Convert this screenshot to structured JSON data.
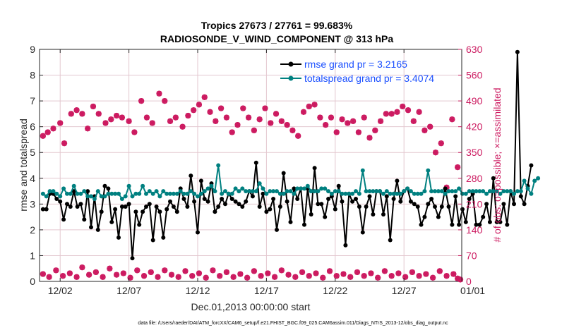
{
  "chart_data": {
    "type": "line",
    "title_line1": "Tropics 27673 / 27761 = 99.683%",
    "title_line2": "RADIOSONDE_V_WIND_COMPONENT @ 313 hPa",
    "xlabel": "Dec.01,2013 00:00:00 start",
    "ylabel_left": "rmse and totalspread",
    "ylabel_right": "# of obs: o=possible; ×=assimilated",
    "footer": "data file: /Users/raeder/DAI/ATM_forcXX/CAM6_setup/f.e21.FHIST_BGC.f09_025.CAM6assim.011/Diags_NTrS_2013-12/obs_diag_output.nc",
    "xlim": [
      0.5,
      31.2
    ],
    "ylim_left": [
      0,
      9
    ],
    "ylim_right": [
      0,
      630
    ],
    "xticks": [
      2,
      7,
      12,
      17,
      22,
      27,
      32
    ],
    "xtick_labels": [
      "12/02",
      "12/07",
      "12/12",
      "12/17",
      "12/22",
      "12/27",
      "01/01"
    ],
    "yticks_left": [
      0,
      1,
      2,
      3,
      4,
      5,
      6,
      7,
      8,
      9
    ],
    "yticks_left_labels": [
      "0",
      "1",
      "2",
      "3",
      "4",
      "5",
      "6",
      "7",
      "8",
      "9"
    ],
    "yticks_right": [
      0,
      70,
      140,
      210,
      280,
      350,
      420,
      490,
      560,
      630
    ],
    "yticks_right_labels": [
      "0",
      "70",
      "140",
      "210",
      "280",
      "350",
      "420",
      "490",
      "560",
      "630"
    ],
    "legend": [
      {
        "label": "rmse grand pr = 3.2165",
        "color": "#000000"
      },
      {
        "label": "totalspread grand pr = 3.4074",
        "color": "#008080"
      }
    ],
    "colors": {
      "rmse": "#000000",
      "spread": "#008080",
      "obs": "#cc1a60",
      "right_axis": "#cc1a60"
    },
    "x_start": 0.75,
    "x_step": 0.25,
    "series": [
      {
        "name": "rmse",
        "values": [
          2.8,
          2.8,
          3.4,
          3.4,
          3.2,
          3.1,
          2.4,
          3.0,
          2.9,
          3.5,
          2.9,
          3.0,
          2.4,
          3.5,
          2.1,
          3.3,
          2.0,
          2.7,
          3.7,
          3.6,
          2.3,
          2.8,
          1.7,
          2.9,
          2.9,
          3.0,
          0.9,
          2.7,
          2.2,
          2.7,
          2.9,
          3.0,
          1.6,
          2.9,
          2.7,
          1.7,
          2.8,
          3.1,
          2.9,
          2.7,
          3.6,
          3.2,
          2.9,
          4.1,
          3.1,
          1.9,
          3.9,
          3.2,
          3.1,
          3.8,
          2.7,
          2.9,
          3.2,
          3.0,
          3.4,
          3.2,
          3.1,
          3.0,
          2.9,
          3.1,
          3.5,
          3.3,
          4.6,
          2.9,
          3.4,
          2.7,
          2.8,
          3.2,
          2.0,
          2.9,
          4.2,
          3.1,
          2.3,
          3.6,
          3.2,
          3.6,
          2.2,
          3.6,
          2.6,
          4.4,
          3.0,
          3.0,
          2.5,
          3.2,
          3.3,
          2.8,
          3.7,
          3.1,
          1.4,
          3.4,
          3.1,
          3.2,
          2.9,
          1.9,
          2.9,
          3.3,
          2.6,
          3.5,
          3.5,
          2.6,
          3.3,
          1.6,
          3.2,
          3.9,
          3.1,
          3.5,
          3.6,
          3.1,
          3.0,
          2.9,
          2.2,
          2.5,
          3.0,
          3.2,
          2.9,
          2.5,
          2.9,
          3.6,
          2.9,
          2.2,
          3.3,
          2.2,
          2.8,
          2.3,
          3.2,
          3.4,
          2.2,
          2.2,
          2.5,
          3.0,
          2.3,
          4.0,
          2.3,
          2.3,
          3.0,
          2.2,
          3.5,
          3.0,
          8.9,
          3.3,
          3.0,
          3.7,
          4.5
        ]
      },
      {
        "name": "totalspread",
        "values": [
          3.4,
          3.3,
          3.5,
          3.5,
          3.4,
          3.3,
          3.6,
          3.4,
          3.4,
          3.7,
          3.4,
          3.4,
          3.5,
          3.3,
          3.3,
          3.2,
          3.5,
          3.3,
          3.3,
          3.4,
          3.4,
          3.4,
          3.4,
          3.2,
          3.3,
          3.7,
          3.3,
          3.4,
          3.4,
          3.7,
          3.4,
          3.5,
          3.4,
          3.5,
          3.3,
          3.5,
          3.4,
          3.4,
          3.4,
          3.4,
          3.5,
          3.4,
          3.4,
          3.5,
          3.4,
          3.3,
          3.4,
          3.5,
          3.6,
          3.7,
          3.5,
          4.5,
          3.4,
          3.5,
          3.4,
          3.4,
          3.6,
          3.5,
          3.6,
          3.5,
          3.5,
          3.5,
          3.5,
          3.8,
          3.6,
          3.4,
          3.5,
          3.5,
          3.5,
          3.4,
          3.4,
          3.5,
          3.5,
          3.4,
          3.6,
          3.6,
          3.6,
          3.7,
          3.5,
          3.5,
          3.5,
          3.6,
          3.6,
          3.5,
          3.4,
          3.5,
          3.5,
          3.4,
          3.4,
          3.4,
          3.4,
          3.5,
          3.4,
          4.3,
          3.5,
          3.5,
          3.5,
          3.5,
          3.5,
          3.4,
          3.5,
          3.4,
          3.4,
          3.4,
          3.4,
          3.5,
          3.6,
          3.5,
          3.4,
          3.4,
          3.4,
          3.5,
          4.3,
          3.5,
          3.5,
          3.5,
          3.5,
          3.4,
          3.5,
          3.5,
          3.5,
          3.6,
          3.4,
          3.4,
          3.5,
          3.5,
          3.5,
          3.5,
          3.5,
          3.4,
          3.5,
          3.5,
          3.5,
          3.4,
          3.5,
          3.5,
          3.5,
          3.4,
          3.5,
          3.5,
          3.9,
          3.6,
          3.4,
          3.9,
          4.0
        ]
      }
    ],
    "obs_possible": [
      {
        "x": 0.75,
        "y": 395
      },
      {
        "x": 1.1,
        "y": 405
      },
      {
        "x": 1.5,
        "y": 415
      },
      {
        "x": 2.0,
        "y": 430
      },
      {
        "x": 2.3,
        "y": 375
      },
      {
        "x": 2.8,
        "y": 455
      },
      {
        "x": 3.2,
        "y": 465
      },
      {
        "x": 3.6,
        "y": 455
      },
      {
        "x": 4.0,
        "y": 415
      },
      {
        "x": 4.4,
        "y": 475
      },
      {
        "x": 4.8,
        "y": 455
      },
      {
        "x": 5.3,
        "y": 430
      },
      {
        "x": 5.7,
        "y": 440
      },
      {
        "x": 6.1,
        "y": 450
      },
      {
        "x": 6.5,
        "y": 445
      },
      {
        "x": 7.0,
        "y": 435
      },
      {
        "x": 7.4,
        "y": 405
      },
      {
        "x": 7.9,
        "y": 490
      },
      {
        "x": 8.3,
        "y": 445
      },
      {
        "x": 8.7,
        "y": 430
      },
      {
        "x": 9.2,
        "y": 510
      },
      {
        "x": 9.6,
        "y": 490
      },
      {
        "x": 10.0,
        "y": 435
      },
      {
        "x": 10.4,
        "y": 445
      },
      {
        "x": 10.9,
        "y": 420
      },
      {
        "x": 11.3,
        "y": 450
      },
      {
        "x": 11.7,
        "y": 465
      },
      {
        "x": 12.1,
        "y": 480
      },
      {
        "x": 12.5,
        "y": 500
      },
      {
        "x": 12.9,
        "y": 460
      },
      {
        "x": 13.3,
        "y": 435
      },
      {
        "x": 13.7,
        "y": 470
      },
      {
        "x": 14.1,
        "y": 445
      },
      {
        "x": 14.5,
        "y": 405
      },
      {
        "x": 14.9,
        "y": 425
      },
      {
        "x": 15.3,
        "y": 470
      },
      {
        "x": 15.7,
        "y": 445
      },
      {
        "x": 16.1,
        "y": 410
      },
      {
        "x": 16.5,
        "y": 440
      },
      {
        "x": 16.9,
        "y": 470
      },
      {
        "x": 17.3,
        "y": 430
      },
      {
        "x": 17.7,
        "y": 455
      },
      {
        "x": 18.1,
        "y": 435
      },
      {
        "x": 18.5,
        "y": 425
      },
      {
        "x": 18.9,
        "y": 410
      },
      {
        "x": 19.3,
        "y": 395
      },
      {
        "x": 19.7,
        "y": 460
      },
      {
        "x": 20.1,
        "y": 475
      },
      {
        "x": 20.5,
        "y": 480
      },
      {
        "x": 20.9,
        "y": 445
      },
      {
        "x": 21.3,
        "y": 425
      },
      {
        "x": 21.7,
        "y": 445
      },
      {
        "x": 22.1,
        "y": 405
      },
      {
        "x": 22.5,
        "y": 440
      },
      {
        "x": 22.9,
        "y": 430
      },
      {
        "x": 23.3,
        "y": 435
      },
      {
        "x": 23.7,
        "y": 405
      },
      {
        "x": 24.1,
        "y": 445
      },
      {
        "x": 24.5,
        "y": 390
      },
      {
        "x": 24.9,
        "y": 410
      },
      {
        "x": 25.3,
        "y": 435
      },
      {
        "x": 25.7,
        "y": 455
      },
      {
        "x": 26.1,
        "y": 455
      },
      {
        "x": 26.5,
        "y": 460
      },
      {
        "x": 26.9,
        "y": 475
      },
      {
        "x": 27.3,
        "y": 465
      },
      {
        "x": 27.7,
        "y": 435
      },
      {
        "x": 28.1,
        "y": 460
      },
      {
        "x": 28.5,
        "y": 410
      },
      {
        "x": 28.9,
        "y": 420
      },
      {
        "x": 29.3,
        "y": 350
      },
      {
        "x": 29.7,
        "y": 375
      },
      {
        "x": 30.1,
        "y": 255
      },
      {
        "x": 30.5,
        "y": 440
      },
      {
        "x": 30.9,
        "y": 310
      }
    ],
    "obs_assimilated": [
      {
        "x": 0.75,
        "y": 20
      },
      {
        "x": 1.2,
        "y": 12
      },
      {
        "x": 1.7,
        "y": 30
      },
      {
        "x": 2.2,
        "y": 15
      },
      {
        "x": 2.7,
        "y": 22
      },
      {
        "x": 3.2,
        "y": 12
      },
      {
        "x": 3.6,
        "y": 38
      },
      {
        "x": 4.1,
        "y": 18
      },
      {
        "x": 4.6,
        "y": 25
      },
      {
        "x": 5.1,
        "y": 12
      },
      {
        "x": 5.6,
        "y": 35
      },
      {
        "x": 6.1,
        "y": 18
      },
      {
        "x": 6.6,
        "y": 22
      },
      {
        "x": 7.1,
        "y": 10
      },
      {
        "x": 7.6,
        "y": 30
      },
      {
        "x": 8.1,
        "y": 15
      },
      {
        "x": 8.6,
        "y": 25
      },
      {
        "x": 9.1,
        "y": 12
      },
      {
        "x": 9.6,
        "y": 30
      },
      {
        "x": 10.1,
        "y": 18
      },
      {
        "x": 10.6,
        "y": 12
      },
      {
        "x": 11.1,
        "y": 28
      },
      {
        "x": 11.6,
        "y": 15
      },
      {
        "x": 12.1,
        "y": 22
      },
      {
        "x": 12.6,
        "y": 10
      },
      {
        "x": 13.1,
        "y": 30
      },
      {
        "x": 13.6,
        "y": 15
      },
      {
        "x": 14.1,
        "y": 25
      },
      {
        "x": 14.6,
        "y": 12
      },
      {
        "x": 15.1,
        "y": 20
      },
      {
        "x": 15.6,
        "y": 10
      },
      {
        "x": 16.1,
        "y": 28
      },
      {
        "x": 16.6,
        "y": 15
      },
      {
        "x": 17.1,
        "y": 22
      },
      {
        "x": 17.6,
        "y": 12
      },
      {
        "x": 18.1,
        "y": 30
      },
      {
        "x": 18.6,
        "y": 18
      },
      {
        "x": 19.1,
        "y": 12
      },
      {
        "x": 19.6,
        "y": 25
      },
      {
        "x": 20.1,
        "y": 15
      },
      {
        "x": 20.6,
        "y": 22
      },
      {
        "x": 21.1,
        "y": 10
      },
      {
        "x": 21.6,
        "y": 28
      },
      {
        "x": 22.1,
        "y": 15
      },
      {
        "x": 22.6,
        "y": 20
      },
      {
        "x": 23.1,
        "y": 12
      },
      {
        "x": 23.6,
        "y": 25
      },
      {
        "x": 24.1,
        "y": 15
      },
      {
        "x": 24.6,
        "y": 22
      },
      {
        "x": 25.1,
        "y": 10
      },
      {
        "x": 25.6,
        "y": 28
      },
      {
        "x": 26.1,
        "y": 15
      },
      {
        "x": 26.6,
        "y": 22
      },
      {
        "x": 27.1,
        "y": 12
      },
      {
        "x": 27.6,
        "y": 25
      },
      {
        "x": 28.1,
        "y": 15
      },
      {
        "x": 28.6,
        "y": 20
      },
      {
        "x": 29.1,
        "y": 10
      },
      {
        "x": 29.6,
        "y": 28
      },
      {
        "x": 30.1,
        "y": 15
      },
      {
        "x": 30.6,
        "y": 20
      },
      {
        "x": 30.9,
        "y": 8
      },
      {
        "x": 31.1,
        "y": 5
      }
    ]
  }
}
